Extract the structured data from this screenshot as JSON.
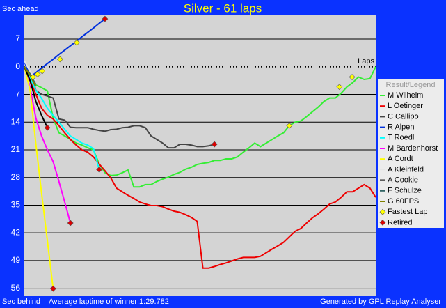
{
  "chart_data": {
    "type": "line",
    "title": "Silver - 61 laps",
    "y_label_top": "Sec ahead",
    "y_label_bottom": "Sec behind",
    "x_label": "Laps",
    "footer_left": "Average laptime of winner:1:29.782",
    "footer_right": "Generated by GPL Replay Analyser",
    "legend_title": "Result/Legend",
    "y_inverted": true,
    "grid": true,
    "xlim": [
      0,
      61
    ],
    "ylim": [
      -13,
      58
    ],
    "yticks": [
      {
        "value": -7,
        "label": "7"
      },
      0,
      7,
      14,
      21,
      28,
      35,
      42,
      49,
      56
    ],
    "x": [
      0,
      1,
      2,
      3,
      4,
      5,
      6,
      7,
      8,
      9,
      10,
      11,
      12,
      13,
      14,
      15,
      16,
      17,
      18,
      19,
      20,
      21,
      22,
      23,
      24,
      25,
      26,
      27,
      28,
      29,
      30,
      31,
      32,
      33,
      34,
      35,
      36,
      37,
      38,
      39,
      40,
      41,
      42,
      43,
      44,
      45,
      46,
      47,
      48,
      49,
      50,
      51,
      52,
      53,
      54,
      55,
      56,
      57,
      58,
      59,
      60,
      61
    ],
    "series": [
      {
        "name": "M Wilhelm",
        "color": "#33ee33",
        "values": [
          0,
          2.6,
          4.6,
          5.3,
          6.1,
          13,
          16.7,
          17.5,
          18.4,
          19.3,
          19.8,
          20.5,
          21,
          24.6,
          26.8,
          27.5,
          27.4,
          26.8,
          26.1,
          30.4,
          30.4,
          29.8,
          29.8,
          29,
          28.4,
          27.9,
          27.2,
          26.7,
          25.9,
          25.4,
          24.7,
          24.4,
          24.2,
          23.7,
          23.7,
          23.3,
          23.3,
          22.8,
          21.6,
          20.5,
          19.3,
          20.2,
          19.3,
          18.4,
          17.5,
          16.7,
          14.9,
          14,
          13.7,
          12.6,
          11.4,
          10.2,
          8.8,
          7.9,
          7.9,
          6.7,
          5.1,
          4.0,
          2.6,
          3.2,
          3.0,
          0
        ]
      },
      {
        "name": "L Oetinger",
        "color": "#ee0000",
        "values": [
          0,
          3.5,
          7,
          10.5,
          12.3,
          13.2,
          14.9,
          16.7,
          18.4,
          19.8,
          21,
          21.6,
          22.8,
          24.6,
          26.3,
          28.1,
          30.7,
          31.6,
          32.5,
          33.3,
          34.2,
          34.7,
          35.1,
          35.1,
          35.4,
          36,
          36.5,
          36.8,
          37.4,
          38.1,
          39.1,
          50.9,
          50.9,
          50.5,
          50,
          49.6,
          49.1,
          48.6,
          48.2,
          48.2,
          48.2,
          47.9,
          47,
          46.1,
          45.3,
          44.4,
          43,
          41.6,
          40.9,
          39.5,
          38.2,
          37.2,
          36,
          34.7,
          34.2,
          33,
          31.6,
          31.6,
          30.7,
          29.8,
          30.7,
          33
        ]
      },
      {
        "name": "C Callipo",
        "color": "#444444",
        "x": [
          0,
          1,
          2,
          3,
          4,
          5,
          6,
          7,
          8,
          9,
          10,
          11,
          12,
          13,
          14,
          15,
          16,
          17,
          18,
          19,
          20,
          21,
          22,
          23,
          24,
          25,
          26,
          27,
          28,
          29,
          30,
          31,
          32,
          33
        ],
        "values": [
          0,
          1.4,
          6,
          7,
          7.4,
          7.9,
          13.2,
          13.5,
          15.3,
          15.4,
          15.4,
          15.4,
          15.8,
          16.1,
          16.3,
          15.9,
          15.8,
          15.4,
          15.3,
          14.9,
          14.9,
          15.4,
          17.5,
          18.4,
          19.3,
          20.5,
          20.5,
          19.6,
          19.6,
          19.8,
          20.2,
          20.2,
          20,
          19.6
        ]
      },
      {
        "name": "R Alpen",
        "color": "#0030dd",
        "x": [
          0,
          1,
          2,
          3,
          4,
          5,
          6,
          7,
          8,
          9,
          10,
          11,
          12,
          13,
          14
        ],
        "values": [
          -1.4,
          2.6,
          1.5,
          0.3,
          -0.8,
          -1.9,
          -3.1,
          -4.2,
          -5.3,
          -6.4,
          -7.6,
          -8.7,
          -9.8,
          -11,
          -12.1
        ]
      },
      {
        "name": "T Roedl",
        "color": "#00ffff",
        "x": [
          0,
          1,
          2,
          3,
          4,
          5,
          6,
          7,
          8,
          9,
          10,
          11,
          12,
          13
        ],
        "values": [
          0,
          2.8,
          6,
          8,
          10.5,
          12.3,
          14,
          15.8,
          17.5,
          18.4,
          19.3,
          19.8,
          20.7,
          26
        ]
      },
      {
        "name": "M Bardenhorst",
        "color": "#ff00ff",
        "x": [
          0,
          1,
          2,
          3,
          4,
          5,
          6,
          7,
          8
        ],
        "values": [
          0,
          5.3,
          13,
          17.5,
          21,
          24,
          29,
          34.2,
          39.5
        ]
      },
      {
        "name": "A Cordt",
        "color": "#ffff00",
        "x": [
          0,
          1,
          2,
          3,
          4,
          5
        ],
        "values": [
          0,
          6,
          19.6,
          32,
          44,
          56.1
        ]
      },
      {
        "name": "A Kleinfeld",
        "color": "#e6e6e6",
        "x": [
          0,
          1,
          2
        ],
        "values": [
          -1.5,
          1.2,
          3.5
        ]
      },
      {
        "name": "A Cookie",
        "color": "#000000",
        "x": [
          0,
          1,
          2,
          3,
          4
        ],
        "values": [
          0,
          3.5,
          8.8,
          12.3,
          15.4
        ]
      },
      {
        "name": "F Schulze",
        "color": "#336666",
        "x": [
          0,
          1,
          2
        ],
        "values": [
          0,
          2,
          4.5
        ]
      },
      {
        "name": "G 60FPS",
        "color": "#808000",
        "x": [
          0,
          1,
          2
        ],
        "values": [
          0,
          2.2,
          5
        ]
      }
    ],
    "markers": [
      {
        "name": "Fastest Lap",
        "color": "#ffff00",
        "x": [
          1.5,
          2.3,
          3.1,
          6.2,
          9.1,
          46,
          54.7,
          56.9
        ],
        "values": [
          2.6,
          1.9,
          1.1,
          -1.9,
          -6.1,
          14.9,
          5.1,
          2.6
        ]
      },
      {
        "name": "Retired",
        "color": "#dd0000",
        "x": [
          14,
          4,
          13,
          8,
          5,
          33
        ],
        "values": [
          -12.1,
          15.4,
          26,
          39.5,
          56.1,
          19.6
        ]
      }
    ]
  }
}
